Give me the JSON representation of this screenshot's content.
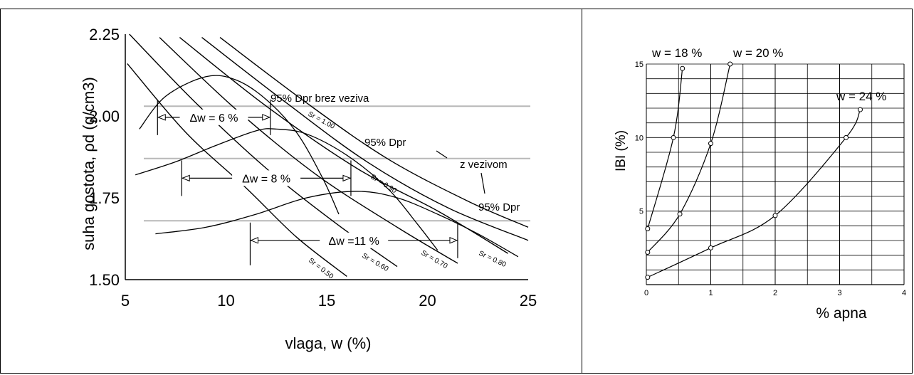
{
  "chart_data": [
    {
      "type": "line",
      "xlabel": "vlaga, w (%)",
      "ylabel": "suha gostota, ρd (g/cm3)",
      "xlim": [
        5,
        25
      ],
      "ylim": [
        1.5,
        2.25
      ],
      "x_ticks": [
        "5",
        "10",
        "15",
        "20",
        "25"
      ],
      "y_ticks": [
        "1.50",
        "1.75",
        "2.00",
        "2.25"
      ],
      "grid": false,
      "compaction_curves": [
        {
          "points": [
            [
              5.7,
              1.96
            ],
            [
              7,
              2.06
            ],
            [
              9,
              2.12
            ],
            [
              10.5,
              2.11
            ],
            [
              12,
              2.05
            ],
            [
              13.5,
              1.95
            ],
            [
              14.8,
              1.81
            ],
            [
              15.6,
              1.7
            ]
          ]
        },
        {
          "points": [
            [
              5.5,
              1.82
            ],
            [
              7.5,
              1.86
            ],
            [
              9.5,
              1.91
            ],
            [
              11.5,
              1.955
            ],
            [
              12.5,
              1.96
            ],
            [
              14,
              1.945
            ],
            [
              16,
              1.88
            ],
            [
              18,
              1.78
            ],
            [
              19.5,
              1.67
            ],
            [
              20.5,
              1.59
            ]
          ]
        },
        {
          "points": [
            [
              6.5,
              1.64
            ],
            [
              9,
              1.66
            ],
            [
              11.5,
              1.7
            ],
            [
              14,
              1.75
            ],
            [
              16.5,
              1.77
            ],
            [
              18.5,
              1.75
            ],
            [
              20.5,
              1.7
            ],
            [
              22.5,
              1.64
            ],
            [
              24.5,
              1.57
            ]
          ]
        }
      ],
      "saturation_lines": [
        {
          "label": "Sr = 0.50",
          "points": [
            [
              5.1,
              2.16
            ],
            [
              8,
              1.95
            ],
            [
              11,
              1.78
            ],
            [
              13.5,
              1.63
            ],
            [
              16,
              1.51
            ]
          ]
        },
        {
          "label": "Sr = 0.60",
          "points": [
            [
              5.2,
              2.25
            ],
            [
              8.5,
              2.04
            ],
            [
              12,
              1.84
            ],
            [
              15.5,
              1.67
            ],
            [
              18.5,
              1.54
            ]
          ]
        },
        {
          "label": "Sr = 0.70",
          "points": [
            [
              6.7,
              2.24
            ],
            [
              10.5,
              2.02
            ],
            [
              14.5,
              1.82
            ],
            [
              18.5,
              1.66
            ],
            [
              21.5,
              1.55
            ]
          ]
        },
        {
          "label": "Sr = 0.80",
          "points": [
            [
              7.7,
              2.24
            ],
            [
              12,
              2.03
            ],
            [
              16.5,
              1.84
            ],
            [
              20.5,
              1.71
            ],
            [
              24,
              1.58
            ]
          ]
        },
        {
          "label": "Sr = 0.90",
          "points": [
            [
              8.8,
              2.24
            ],
            [
              13,
              2.04
            ],
            [
              17,
              1.86
            ],
            [
              21,
              1.72
            ],
            [
              25,
              1.62
            ]
          ]
        },
        {
          "label": "Sr = 1.00",
          "points": [
            [
              9.7,
              2.24
            ],
            [
              14,
              2.04
            ],
            [
              18,
              1.87
            ],
            [
              22,
              1.74
            ],
            [
              25,
              1.66
            ]
          ]
        }
      ],
      "reference_lines": [
        {
          "label": "95% Dpr brez veziva",
          "y": 2.03
        },
        {
          "label": "95% Dpr",
          "y": 1.87
        },
        {
          "label": "95% Dpr",
          "y": 1.68
        }
      ],
      "annotations": {
        "dw6": {
          "label": "Δw = 6 %",
          "x1": 6.6,
          "x2": 12.2,
          "y": 1.996
        },
        "dw8": {
          "label": "Δw = 8 %",
          "x1": 7.8,
          "x2": 16.2,
          "y": 1.81
        },
        "dw11": {
          "label": "Δw =11 %",
          "x1": 11.2,
          "x2": 21.5,
          "y": 1.62
        },
        "z_vezivom": "z vezivom"
      }
    },
    {
      "type": "line",
      "xlabel": "% apna",
      "ylabel": "IBI (%)",
      "xlim": [
        0,
        4
      ],
      "ylim": [
        0,
        15
      ],
      "x_ticks": [
        "0",
        "1",
        "2",
        "3",
        "4"
      ],
      "y_ticks": [
        "5",
        "10",
        "15"
      ],
      "grid": true,
      "series": [
        {
          "name": "w = 18 %",
          "x": [
            0.02,
            0.42,
            0.56
          ],
          "y": [
            3.8,
            10.0,
            14.7
          ]
        },
        {
          "name": "w = 20 %",
          "x": [
            0.02,
            0.52,
            1.0,
            1.3
          ],
          "y": [
            2.2,
            4.8,
            9.6,
            15.0
          ]
        },
        {
          "name": "w = 24 %",
          "x": [
            0.02,
            1.0,
            2.0,
            3.1,
            3.32
          ],
          "y": [
            0.5,
            2.5,
            4.7,
            10.0,
            11.9
          ]
        }
      ]
    }
  ]
}
